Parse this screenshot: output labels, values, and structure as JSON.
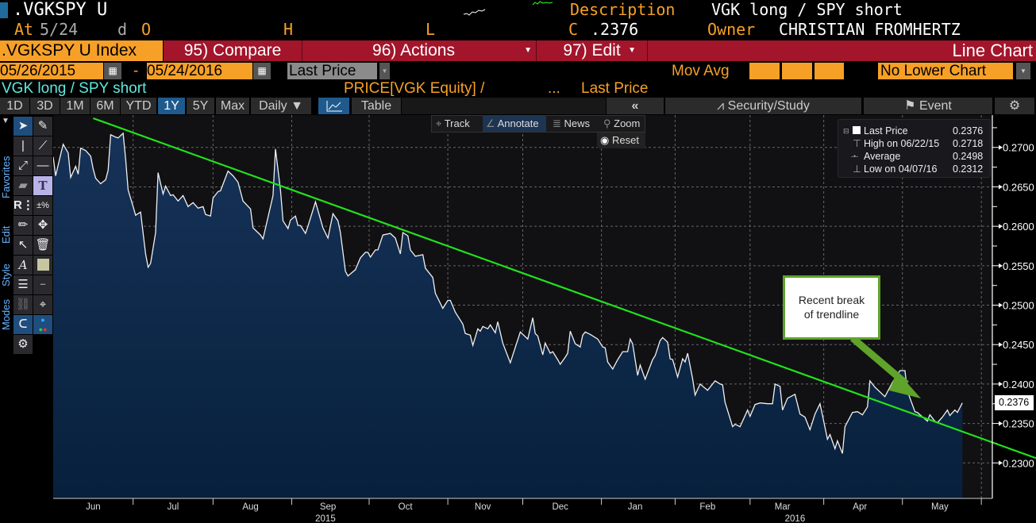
{
  "header": {
    "ticker": ".VGKSPY U",
    "description_label": "Description",
    "description": "VGK long / SPY short",
    "at_label": "At",
    "at_date": "5/24",
    "d_label": "d",
    "open_label": "O",
    "high_label": "H",
    "low_label": "L",
    "close_label": "C",
    "close_value": ".2376",
    "owner_label": "Owner",
    "owner": "CHRISTIAN FROMHERTZ"
  },
  "menu": {
    "security": ".VGKSPY U Index",
    "compare": "95) Compare",
    "actions": "96) Actions",
    "edit": "97) Edit",
    "chart_type": "Line Chart"
  },
  "controls": {
    "start_date": "05/26/2015",
    "dash": "-",
    "end_date": "05/24/2016",
    "field": "Last Price",
    "mov_avg_label": "Mov Avg",
    "lower_chart": "No Lower Chart"
  },
  "legend_row": {
    "name": "VGK long / SPY short",
    "formula": "PRICE[VGK Equity] /",
    "ellipsis": "...",
    "field": "Last Price"
  },
  "ranges": [
    {
      "label": "1D"
    },
    {
      "label": "3D"
    },
    {
      "label": "1M"
    },
    {
      "label": "6M"
    },
    {
      "label": "YTD"
    },
    {
      "label": "1Y",
      "active": true
    },
    {
      "label": "5Y"
    },
    {
      "label": "Max"
    }
  ],
  "periodicity": "Daily ▼",
  "view_toggle": {
    "table": "Table",
    "collapse": "«",
    "security_study": "Security/Study",
    "event": "Event"
  },
  "toolbar": {
    "track": "Track",
    "annotate": "Annotate",
    "news": "News",
    "zoom": "Zoom",
    "reset": "Reset"
  },
  "side_tabs": {
    "favorites": "Favorites",
    "edit": "Edit",
    "style": "Style",
    "modes": "Modes"
  },
  "legend": {
    "last_label": "Last Price",
    "last": "0.2376",
    "high_label": "High on 06/22/15",
    "high": "0.2718",
    "avg_label": "Average",
    "avg": "0.2498",
    "low_label": "Low on 04/07/16",
    "low": "0.2312"
  },
  "annotation": {
    "text1": "Recent break",
    "text2": "of trendline"
  },
  "last_tag": "0.2376",
  "colors": {
    "orange": "#f7a027",
    "red": "#a3152b",
    "line": "#ffffff",
    "area": "#0c2444",
    "trend": "#22e21a",
    "arrow": "#5fa32a"
  },
  "chart_data": {
    "type": "area",
    "title": "VGK long / SPY short",
    "x_unit": "day index from 05/26/2015",
    "xlim": [
      0,
      376
    ],
    "ylim": [
      0.2255,
      0.2741
    ],
    "yticks": [
      "0.2300",
      "0.2350",
      "0.2400",
      "0.2450",
      "0.2500",
      "0.2550",
      "0.2600",
      "0.2650",
      "0.2700"
    ],
    "months": [
      {
        "label": "Jun",
        "x": 16
      },
      {
        "label": "Jul",
        "x": 48
      },
      {
        "label": "Aug",
        "x": 79
      },
      {
        "label": "Sep",
        "x": 110
      },
      {
        "label": "Oct",
        "x": 141
      },
      {
        "label": "Nov",
        "x": 172
      },
      {
        "label": "Dec",
        "x": 203
      },
      {
        "label": "Jan",
        "x": 233
      },
      {
        "label": "Feb",
        "x": 262
      },
      {
        "label": "Mar",
        "x": 292
      },
      {
        "label": "Apr",
        "x": 323
      },
      {
        "label": "May",
        "x": 355
      }
    ],
    "month_grid": [
      32,
      64,
      95.5,
      126.5,
      158,
      188,
      219.5,
      249,
      279,
      308.5,
      340,
      371.6
    ],
    "years": [
      {
        "label": "2015",
        "x": 109
      },
      {
        "label": "2016",
        "x": 297
      }
    ],
    "grid": true,
    "trendline": [
      [
        16,
        0.2737
      ],
      [
        376,
        0.2326
      ]
    ],
    "series": [
      {
        "name": "Last Price",
        "points": [
          [
            0,
            0.2688
          ],
          [
            1,
            0.2664
          ],
          [
            3,
            0.2691
          ],
          [
            4,
            0.2704
          ],
          [
            6,
            0.2693
          ],
          [
            7,
            0.2662
          ],
          [
            9,
            0.2676
          ],
          [
            10,
            0.2666
          ],
          [
            11,
            0.2699
          ],
          [
            13,
            0.2696
          ],
          [
            15,
            0.2689
          ],
          [
            16,
            0.2673
          ],
          [
            17,
            0.2661
          ],
          [
            19,
            0.2654
          ],
          [
            21,
            0.2659
          ],
          [
            22,
            0.2671
          ],
          [
            23,
            0.2716
          ],
          [
            25,
            0.2713
          ],
          [
            26,
            0.2712
          ],
          [
            28,
            0.2718
          ],
          [
            29,
            0.2686
          ],
          [
            30,
            0.2646
          ],
          [
            32,
            0.2625
          ],
          [
            33,
            0.2614
          ],
          [
            35,
            0.2618
          ],
          [
            37,
            0.2565
          ],
          [
            38,
            0.2548
          ],
          [
            39,
            0.2553
          ],
          [
            41,
            0.2592
          ],
          [
            42,
            0.2668
          ],
          [
            44,
            0.2641
          ],
          [
            45,
            0.2651
          ],
          [
            47,
            0.2639
          ],
          [
            48,
            0.264
          ],
          [
            50,
            0.2632
          ],
          [
            52,
            0.2639
          ],
          [
            54,
            0.2625
          ],
          [
            56,
            0.263
          ],
          [
            58,
            0.2623
          ],
          [
            60,
            0.2625
          ],
          [
            61,
            0.2615
          ],
          [
            63,
            0.2613
          ],
          [
            64,
            0.2636
          ],
          [
            66,
            0.2644
          ],
          [
            67,
            0.2645
          ],
          [
            70,
            0.267
          ],
          [
            72,
            0.2664
          ],
          [
            74,
            0.2656
          ],
          [
            76,
            0.2632
          ],
          [
            79,
            0.2622
          ],
          [
            80,
            0.2598
          ],
          [
            83,
            0.2589
          ],
          [
            84,
            0.2584
          ],
          [
            88,
            0.2639
          ],
          [
            89,
            0.2698
          ],
          [
            91,
            0.2646
          ],
          [
            92,
            0.2607
          ],
          [
            94,
            0.2597
          ],
          [
            95,
            0.2608
          ],
          [
            97,
            0.2613
          ],
          [
            98,
            0.2601
          ],
          [
            99,
            0.2601
          ],
          [
            101,
            0.2591
          ],
          [
            102,
            0.26
          ],
          [
            105,
            0.2631
          ],
          [
            108,
            0.2598
          ],
          [
            110,
            0.2585
          ],
          [
            112,
            0.2616
          ],
          [
            114,
            0.2607
          ],
          [
            115,
            0.2592
          ],
          [
            117,
            0.2543
          ],
          [
            118,
            0.2537
          ],
          [
            121,
            0.2545
          ],
          [
            123,
            0.256
          ],
          [
            125,
            0.2567
          ],
          [
            126,
            0.2567
          ],
          [
            127,
            0.2561
          ],
          [
            129,
            0.257
          ],
          [
            130,
            0.257
          ],
          [
            132,
            0.2589
          ],
          [
            135,
            0.2591
          ],
          [
            137,
            0.2585
          ],
          [
            139,
            0.2565
          ],
          [
            140,
            0.2592
          ],
          [
            142,
            0.2588
          ],
          [
            143,
            0.257
          ],
          [
            145,
            0.2562
          ],
          [
            148,
            0.2564
          ],
          [
            149,
            0.2547
          ],
          [
            152,
            0.2535
          ],
          [
            153,
            0.2515
          ],
          [
            156,
            0.2496
          ],
          [
            158,
            0.2506
          ],
          [
            159,
            0.2506
          ],
          [
            161,
            0.2491
          ],
          [
            164,
            0.2476
          ],
          [
            165,
            0.2464
          ],
          [
            167,
            0.2462
          ],
          [
            168,
            0.2449
          ],
          [
            170,
            0.247
          ],
          [
            171,
            0.2467
          ],
          [
            172,
            0.2473
          ],
          [
            174,
            0.247
          ],
          [
            175,
            0.2475
          ],
          [
            177,
            0.2465
          ],
          [
            178,
            0.2479
          ],
          [
            180,
            0.2452
          ],
          [
            183,
            0.2427
          ],
          [
            187,
            0.2466
          ],
          [
            190,
            0.2457
          ],
          [
            192,
            0.2484
          ],
          [
            193,
            0.2464
          ],
          [
            194,
            0.2461
          ],
          [
            196,
            0.2437
          ],
          [
            197,
            0.2452
          ],
          [
            199,
            0.2439
          ],
          [
            200,
            0.2441
          ],
          [
            202,
            0.2431
          ],
          [
            203,
            0.2425
          ],
          [
            205,
            0.2434
          ],
          [
            206,
            0.2439
          ],
          [
            207,
            0.2467
          ],
          [
            209,
            0.2451
          ],
          [
            211,
            0.2447
          ],
          [
            212,
            0.2462
          ],
          [
            213,
            0.2466
          ],
          [
            215,
            0.2463
          ],
          [
            218,
            0.2457
          ],
          [
            220,
            0.2447
          ],
          [
            221,
            0.2446
          ],
          [
            222,
            0.2428
          ],
          [
            224,
            0.2419
          ],
          [
            226,
            0.2431
          ],
          [
            228,
            0.2441
          ],
          [
            230,
            0.2441
          ],
          [
            231,
            0.2457
          ],
          [
            232,
            0.2451
          ],
          [
            234,
            0.2411
          ],
          [
            235,
            0.2424
          ],
          [
            237,
            0.2406
          ],
          [
            240,
            0.2431
          ],
          [
            241,
            0.2436
          ],
          [
            243,
            0.2455
          ],
          [
            244,
            0.2459
          ],
          [
            246,
            0.2453
          ],
          [
            247,
            0.2432
          ],
          [
            248,
            0.2431
          ],
          [
            250,
            0.2409
          ],
          [
            252,
            0.2432
          ],
          [
            253,
            0.2428
          ],
          [
            254,
            0.2439
          ],
          [
            256,
            0.2407
          ],
          [
            257,
            0.2386
          ],
          [
            259,
            0.24
          ],
          [
            262,
            0.2392
          ],
          [
            265,
            0.2404
          ],
          [
            267,
            0.24
          ],
          [
            268,
            0.2399
          ],
          [
            269,
            0.2377
          ],
          [
            272,
            0.2346
          ],
          [
            273,
            0.2349
          ],
          [
            275,
            0.2346
          ],
          [
            278,
            0.2367
          ],
          [
            279,
            0.2359
          ],
          [
            281,
            0.2374
          ],
          [
            283,
            0.2376
          ],
          [
            286,
            0.2375
          ],
          [
            288,
            0.2375
          ],
          [
            289,
            0.24
          ],
          [
            291,
            0.2397
          ],
          [
            292,
            0.2367
          ],
          [
            294,
            0.2382
          ],
          [
            297,
            0.2387
          ],
          [
            299,
            0.2362
          ],
          [
            301,
            0.2358
          ],
          [
            303,
            0.2342
          ],
          [
            305,
            0.2362
          ],
          [
            307,
            0.2375
          ],
          [
            308,
            0.236
          ],
          [
            310,
            0.233
          ],
          [
            311,
            0.2336
          ],
          [
            313,
            0.2318
          ],
          [
            314,
            0.2328
          ],
          [
            316,
            0.2312
          ],
          [
            317,
            0.2346
          ],
          [
            319,
            0.2358
          ],
          [
            320,
            0.2364
          ],
          [
            322,
            0.2365
          ],
          [
            324,
            0.2361
          ],
          [
            326,
            0.2371
          ],
          [
            327,
            0.2404
          ],
          [
            329,
            0.2396
          ],
          [
            331,
            0.239
          ],
          [
            333,
            0.2384
          ],
          [
            336,
            0.2402
          ],
          [
            339,
            0.2417
          ],
          [
            341,
            0.2417
          ],
          [
            342,
            0.2391
          ],
          [
            345,
            0.2365
          ],
          [
            346,
            0.2364
          ],
          [
            350,
            0.2353
          ],
          [
            351,
            0.2361
          ],
          [
            353,
            0.2353
          ],
          [
            354,
            0.2351
          ],
          [
            356,
            0.2358
          ],
          [
            358,
            0.2367
          ],
          [
            359,
            0.236
          ],
          [
            361,
            0.2367
          ],
          [
            362,
            0.2364
          ],
          [
            364,
            0.2376
          ]
        ]
      }
    ]
  }
}
